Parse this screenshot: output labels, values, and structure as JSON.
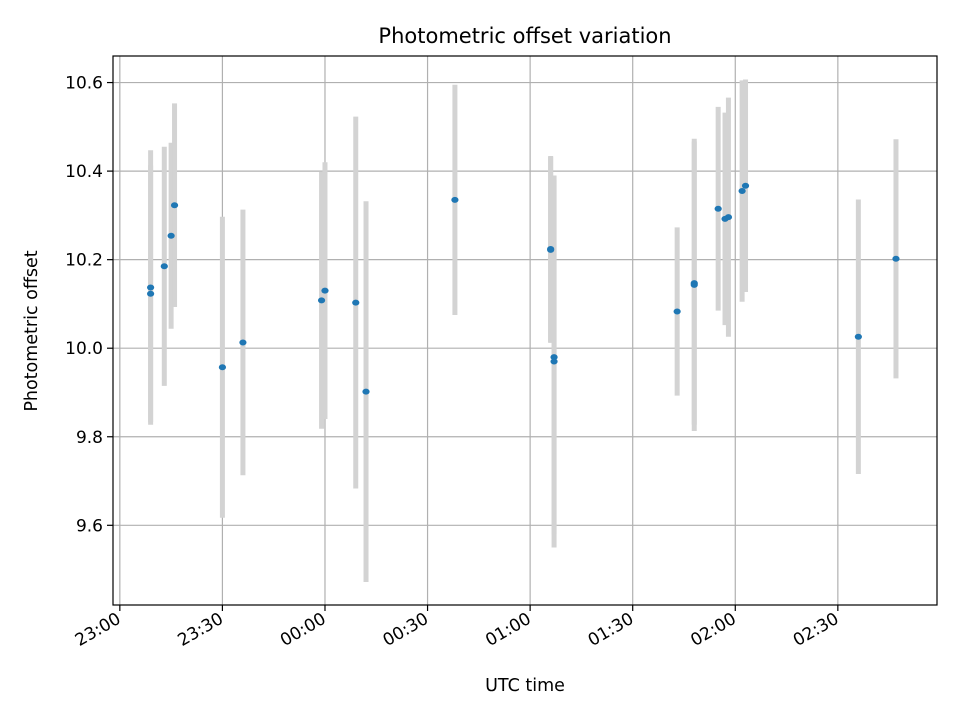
{
  "chart_data": {
    "type": "scatter",
    "title": "Photometric offset variation",
    "xlabel": "UTC time",
    "ylabel": "Photometric offset",
    "x_ticks": [
      "23:00",
      "23:30",
      "00:00",
      "00:30",
      "01:00",
      "01:30",
      "02:00",
      "02:30"
    ],
    "y_ticks": [
      "9.6",
      "9.8",
      "10.0",
      "10.2",
      "10.4",
      "10.6"
    ],
    "x_is_time": true,
    "xlim": [
      "22:58",
      "02:59"
    ],
    "ylim": [
      9.42,
      10.66
    ],
    "grid": true,
    "marker_color": "#1f77b4",
    "errorbar_color": "#d3d3d3",
    "points": [
      {
        "x": "23:09",
        "y": 10.137,
        "err_low": 0.31,
        "err_high": 0.31
      },
      {
        "x": "23:09",
        "y": 10.123,
        "err_low": 0.29,
        "err_high": 0.29
      },
      {
        "x": "23:13",
        "y": 10.185,
        "err_low": 0.27,
        "err_high": 0.27
      },
      {
        "x": "23:15",
        "y": 10.254,
        "err_low": 0.21,
        "err_high": 0.21
      },
      {
        "x": "23:16",
        "y": 10.323,
        "err_low": 0.23,
        "err_high": 0.23
      },
      {
        "x": "23:30",
        "y": 9.957,
        "err_low": 0.34,
        "err_high": 0.34
      },
      {
        "x": "23:36",
        "y": 10.013,
        "err_low": 0.3,
        "err_high": 0.3
      },
      {
        "x": "23:59",
        "y": 10.108,
        "err_low": 0.29,
        "err_high": 0.29
      },
      {
        "x": "00:00",
        "y": 10.13,
        "err_low": 0.29,
        "err_high": 0.29
      },
      {
        "x": "00:09",
        "y": 10.103,
        "err_low": 0.42,
        "err_high": 0.42
      },
      {
        "x": "00:12",
        "y": 9.902,
        "err_low": 0.43,
        "err_high": 0.43
      },
      {
        "x": "00:38",
        "y": 10.335,
        "err_low": 0.26,
        "err_high": 0.26
      },
      {
        "x": "01:06",
        "y": 10.222,
        "err_low": 0.21,
        "err_high": 0.21
      },
      {
        "x": "01:06",
        "y": 10.224,
        "err_low": 0.21,
        "err_high": 0.21
      },
      {
        "x": "01:07",
        "y": 9.97,
        "err_low": 0.42,
        "err_high": 0.42
      },
      {
        "x": "01:07",
        "y": 9.98,
        "err_low": 0.4,
        "err_high": 0.4
      },
      {
        "x": "01:43",
        "y": 10.083,
        "err_low": 0.19,
        "err_high": 0.19
      },
      {
        "x": "01:48",
        "y": 10.147,
        "err_low": 0.32,
        "err_high": 0.32
      },
      {
        "x": "01:48",
        "y": 10.143,
        "err_low": 0.33,
        "err_high": 0.33
      },
      {
        "x": "01:55",
        "y": 10.315,
        "err_low": 0.23,
        "err_high": 0.23
      },
      {
        "x": "01:57",
        "y": 10.292,
        "err_low": 0.24,
        "err_high": 0.24
      },
      {
        "x": "01:58",
        "y": 10.296,
        "err_low": 0.27,
        "err_high": 0.27
      },
      {
        "x": "02:02",
        "y": 10.355,
        "err_low": 0.25,
        "err_high": 0.25
      },
      {
        "x": "02:03",
        "y": 10.367,
        "err_low": 0.24,
        "err_high": 0.24
      },
      {
        "x": "02:36",
        "y": 10.026,
        "err_low": 0.31,
        "err_high": 0.31
      },
      {
        "x": "02:47",
        "y": 10.202,
        "err_low": 0.27,
        "err_high": 0.27
      }
    ]
  }
}
